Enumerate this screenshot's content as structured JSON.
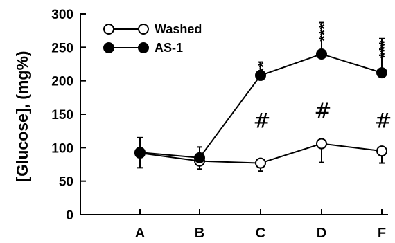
{
  "chart_data": {
    "type": "line",
    "ylabel": "[Glucose], (mg%)",
    "xlabel": "",
    "ylim": [
      0,
      300
    ],
    "yticks": [
      0,
      50,
      100,
      150,
      200,
      250,
      300
    ],
    "categories": [
      "A",
      "B",
      "C",
      "D",
      "F"
    ],
    "series": [
      {
        "name": "Washed",
        "marker": "open-circle",
        "values": [
          92,
          80,
          77,
          106,
          95
        ],
        "errors": [
          22,
          12,
          12,
          28,
          18
        ]
      },
      {
        "name": "AS-1",
        "marker": "filled-circle",
        "values": [
          93,
          85,
          208,
          240,
          212
        ],
        "errors": [
          22,
          16,
          20,
          47,
          51
        ]
      }
    ],
    "legend_position": "top-left",
    "annotations": [
      {
        "category": "C",
        "symbol": "***",
        "value": 215
      },
      {
        "category": "D",
        "symbol": "***",
        "value": 272
      },
      {
        "category": "F",
        "symbol": "***",
        "value": 247
      },
      {
        "category": "C",
        "symbol": "#",
        "value": 140
      },
      {
        "category": "D",
        "symbol": "#",
        "value": 155
      },
      {
        "category": "F",
        "symbol": "#",
        "value": 140
      }
    ]
  }
}
